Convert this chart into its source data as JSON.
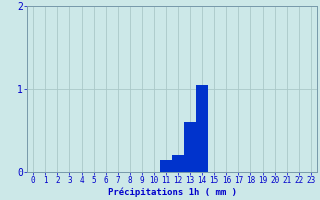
{
  "hours": [
    0,
    1,
    2,
    3,
    4,
    5,
    6,
    7,
    8,
    9,
    10,
    11,
    12,
    13,
    14,
    15,
    16,
    17,
    18,
    19,
    20,
    21,
    22,
    23
  ],
  "values": [
    0,
    0,
    0,
    0,
    0,
    0,
    0,
    0,
    0,
    0,
    0,
    0.15,
    0.2,
    0.6,
    1.05,
    0,
    0,
    0,
    0,
    0,
    0,
    0,
    0,
    0
  ],
  "bar_color": "#0033cc",
  "background_color": "#cce8e8",
  "grid_color": "#aac8c8",
  "axis_color": "#7799aa",
  "tick_color": "#0000cc",
  "xlabel": "Précipitations 1h ( mm )",
  "ylim": [
    0,
    2
  ],
  "yticks": [
    0,
    1,
    2
  ],
  "xlim": [
    -0.5,
    23.5
  ],
  "xlabel_fontsize": 6.5,
  "tick_fontsize": 5.5
}
